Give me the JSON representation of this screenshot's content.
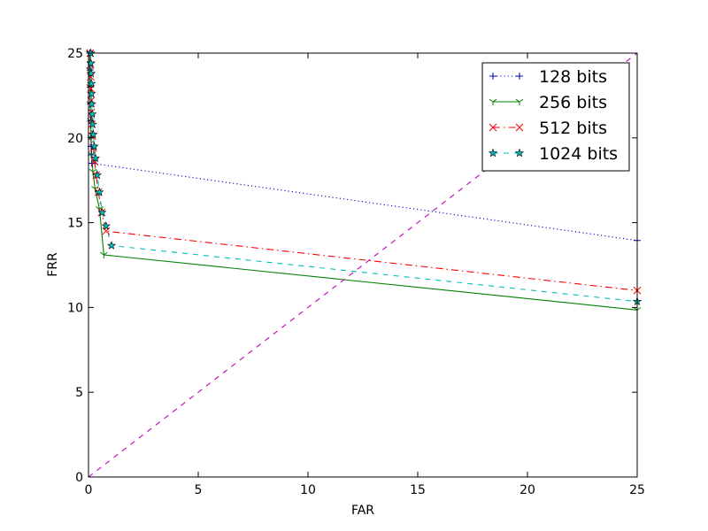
{
  "chart_data": {
    "type": "line",
    "xlabel": "FAR",
    "ylabel": "FRR",
    "xlim": [
      0,
      25
    ],
    "ylim": [
      0,
      25
    ],
    "xticks": [
      0,
      5,
      10,
      15,
      20,
      25
    ],
    "yticks": [
      0,
      5,
      10,
      15,
      20,
      25
    ],
    "grid": false,
    "legend_position": "top-right",
    "series": [
      {
        "name": "128 bits",
        "color": "#0000bf",
        "dash": "dotted",
        "marker": "plus",
        "x": [
          0.06,
          0.07,
          0.08,
          0.09,
          0.1,
          0.11,
          0.12,
          0.13,
          0.15,
          25
        ],
        "y": [
          25.0,
          24.0,
          23.0,
          22.0,
          21.0,
          20.0,
          19.5,
          19.0,
          18.5,
          13.95
        ]
      },
      {
        "name": "256 bits",
        "color": "#008000",
        "dash": "solid",
        "marker": "tri_down",
        "x": [
          0.05,
          0.06,
          0.07,
          0.08,
          0.1,
          0.12,
          0.15,
          0.2,
          0.3,
          0.5,
          0.7,
          25
        ],
        "y": [
          25.0,
          24.0,
          23.0,
          22.0,
          21.0,
          20.0,
          19.0,
          18.0,
          17.0,
          15.8,
          13.1,
          9.85
        ]
      },
      {
        "name": "512 bits",
        "color": "#ff0000",
        "dash": "dashdot",
        "marker": "x",
        "x": [
          0.08,
          0.09,
          0.1,
          0.11,
          0.12,
          0.13,
          0.15,
          0.18,
          0.22,
          0.28,
          0.35,
          0.45,
          0.6,
          0.8,
          25
        ],
        "y": [
          25.0,
          24.3,
          23.6,
          22.9,
          22.2,
          21.5,
          20.8,
          20.1,
          19.4,
          18.6,
          17.8,
          16.8,
          15.6,
          14.5,
          11.0
        ]
      },
      {
        "name": "1024 bits",
        "color": "#00bfbf",
        "dash": "dashed",
        "marker": "star",
        "x": [
          0.1,
          0.11,
          0.12,
          0.13,
          0.14,
          0.15,
          0.17,
          0.19,
          0.22,
          0.26,
          0.32,
          0.4,
          0.5,
          0.62,
          0.8,
          1.05,
          25
        ],
        "y": [
          25.0,
          24.4,
          23.8,
          23.2,
          22.6,
          22.0,
          21.4,
          20.8,
          20.2,
          19.5,
          18.8,
          17.8,
          16.8,
          15.6,
          14.8,
          13.65,
          10.35
        ]
      },
      {
        "color": "#bf00bf",
        "dash": "dashed",
        "marker": "none",
        "x": [
          0,
          25
        ],
        "y": [
          0,
          25
        ]
      }
    ]
  }
}
